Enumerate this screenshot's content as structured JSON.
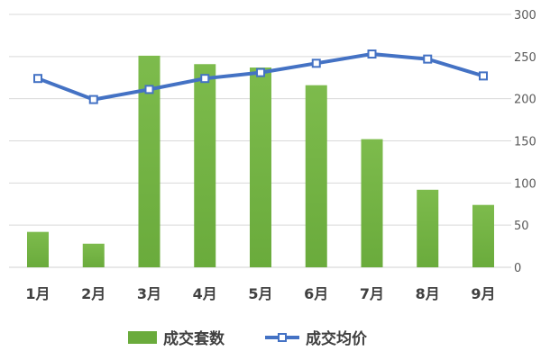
{
  "chart_data": {
    "type": "bar",
    "categories": [
      "1月",
      "2月",
      "3月",
      "4月",
      "5月",
      "6月",
      "7月",
      "8月",
      "9月"
    ],
    "series": [
      {
        "name": "成交套数",
        "type": "bar",
        "axis": "right",
        "color": "#6aab3c",
        "values": [
          42,
          28,
          251,
          241,
          237,
          216,
          152,
          92,
          74
        ]
      },
      {
        "name": "成交均价",
        "type": "line",
        "axis": "right",
        "color": "#4472c4",
        "values": [
          224,
          199,
          211,
          224,
          231,
          242,
          253,
          247,
          227
        ]
      }
    ],
    "y_ticks_visible": [
      "0",
      "50",
      "100",
      "150",
      "200",
      "250",
      "300"
    ],
    "ylim": [
      0,
      300
    ],
    "grid": true,
    "legend_position": "bottom"
  }
}
